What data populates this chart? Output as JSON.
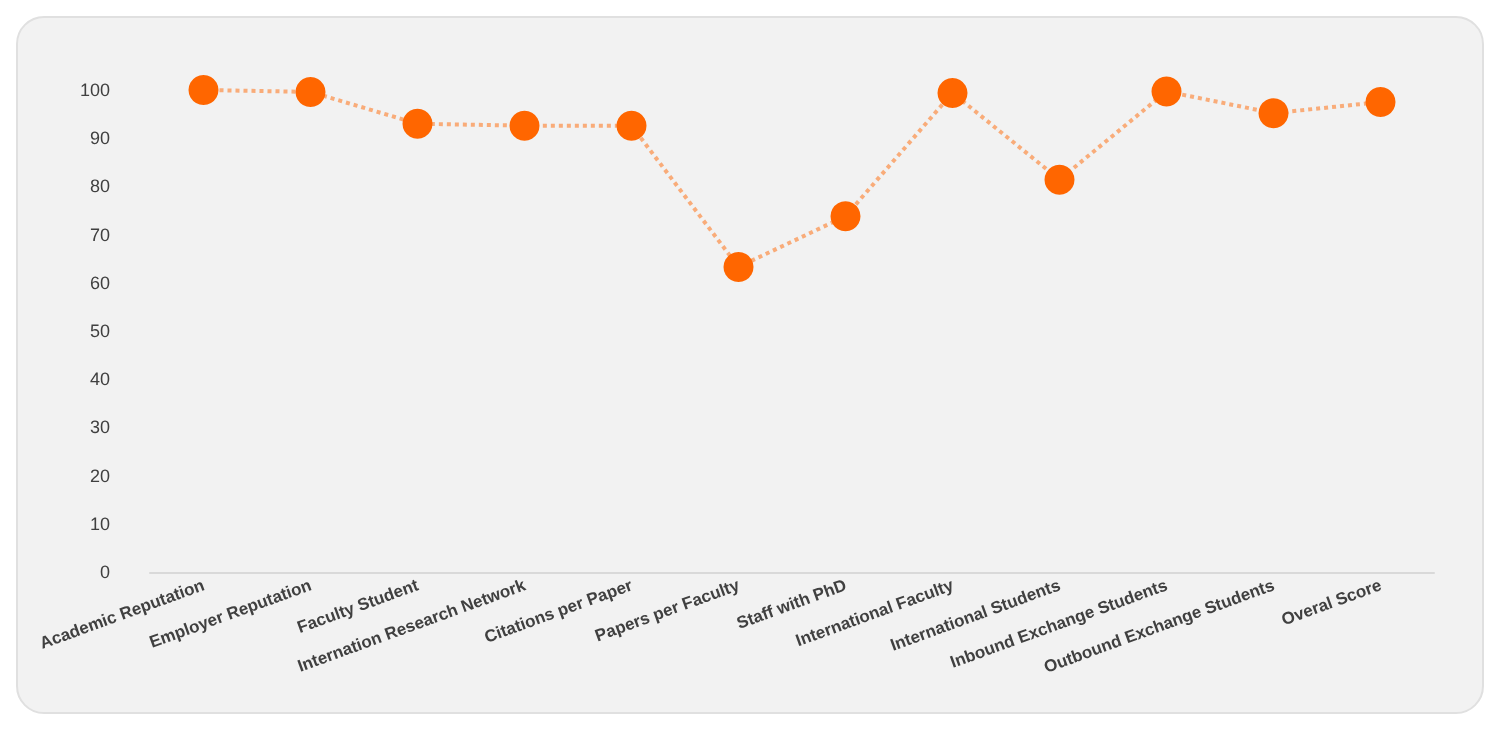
{
  "chart_data": {
    "type": "line",
    "categories": [
      "Academic Reputation",
      "Employer Reputation",
      "Faculty Student",
      "Internation Research Network",
      "Citations per Paper",
      "Papers per Faculty",
      "Staff with PhD",
      "International Faculty",
      "International Students",
      "Inbound Exchange Students",
      "Outbound Exchange Students",
      "Overal Score"
    ],
    "series": [
      {
        "color": "#ff6600",
        "values": [
          100,
          99.6,
          93.0,
          92.6,
          92.6,
          63.3,
          73.8,
          99.4,
          81.4,
          99.7,
          95.2,
          97.5
        ]
      }
    ],
    "ylim": [
      0,
      100
    ],
    "yticks": [
      0,
      10,
      20,
      30,
      40,
      50,
      60,
      70,
      80,
      90,
      100
    ],
    "grid": false,
    "marker": "circle",
    "line_style": "dotted"
  }
}
